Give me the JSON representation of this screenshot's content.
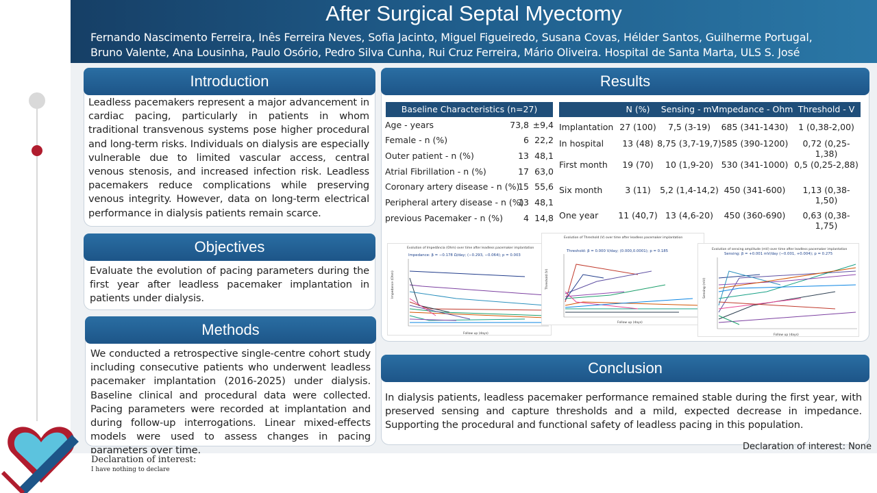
{
  "header": {
    "title": "After Surgical Septal Myectomy",
    "authors": "Fernando Nascimento Ferreira, Inês Ferreira Neves, Sofia Jacinto, Miguel Figueiredo, Susana Covas, Hélder Santos, Guilherme Portugal, Bruno Valente, Ana Lousinha, Paulo Osório, Pedro Silva Cunha, Rui Cruz Ferreira, Mário Oliveira. Hospital de Santa Marta, ULS S. José"
  },
  "introduction": {
    "heading": "Introduction",
    "text": "Leadless pacemakers represent a major advancement in cardiac pacing, particularly in patients in whom traditional transvenous systems pose higher procedural and long-term risks. Individuals on dialysis are especially vulnerable due to limited vascular access, central venous stenosis, and increased infection risk. Leadless pacemakers reduce complications while preserving venous integrity. However, data on long-term electrical performance in dialysis patients remain scarce."
  },
  "objectives": {
    "heading": "Objectives",
    "text": "Evaluate the evolution of pacing parameters during the first year after leadless pacemaker implantation in patients under dialysis."
  },
  "methods": {
    "heading": "Methods",
    "text": "We conducted a retrospective single-centre cohort study including consecutive patients who underwent leadless pacemaker implantation (2016-2025) under dialysis. Baseline clinical and procedural data were collected. Pacing parameters were recorded at implantation and during follow-up interrogations. Linear mixed-effects models were used to assess changes in pacing parameters over time."
  },
  "results": {
    "heading": "Results",
    "baseline": {
      "title": "Baseline Characteristics (n=27)",
      "rows": [
        {
          "label": "Age - years",
          "v1": "73,8",
          "v2": "±9,4"
        },
        {
          "label": "Female - n (%)",
          "v1": "6",
          "v2": "22,2"
        },
        {
          "label": "Outer patient - n (%)",
          "v1": "13",
          "v2": "48,1"
        },
        {
          "label": "Atrial Fibrillation - n (%)",
          "v1": "17",
          "v2": "63,0"
        },
        {
          "label": "Coronary artery disease - n (%)",
          "v1": "15",
          "v2": "55,6"
        },
        {
          "label": "Peripheral artery disease - n (%)",
          "v1": "13",
          "v2": "48,1"
        },
        {
          "label": "previous Pacemaker - n (%)",
          "v1": "4",
          "v2": "14,8"
        }
      ]
    },
    "table": {
      "columns": [
        "N (%)",
        "Sensing - mV",
        "Impedance - Ohm",
        "Threshold - V"
      ],
      "rows": [
        {
          "label": "Implantation",
          "cells": [
            "27 (100)",
            "7,5 (3-19)",
            "685 (341-1430)",
            "1 (0,38-2,00)"
          ]
        },
        {
          "label": "In hospital",
          "cells": [
            "13 (48)",
            "8,75 (3,7-19,7)",
            "585 (390-1200)",
            "0,72 (0,25-1,38)"
          ]
        },
        {
          "label": "First month",
          "cells": [
            "19 (70)",
            "10 (1,9-20)",
            "530 (341-1000)",
            "0,5 (0,25-2,88)"
          ]
        },
        {
          "label": "Six month",
          "cells": [
            "3 (11)",
            "5,2 (1,4-14,2)",
            "450 (341-600)",
            "1,13 (0,38-1,50)"
          ]
        },
        {
          "label": "One year",
          "cells": [
            "11 (40,7)",
            "13 (4,6-20)",
            "450 (360-690)",
            "0,63 (0,38-1,75)"
          ]
        }
      ]
    },
    "plots": [
      {
        "title": "Evolution of Impedância (Ohm) over time after leadless pacemaker implantation",
        "annotation": "Impedance: β = −0.178 Ω/day; (−0.293, −0.064); p = 0.003",
        "ylabel": "Impedance (Ohm)",
        "xlabel": "Follow up (days)"
      },
      {
        "title": "Evolution of Threshold (V) over time after leadless pacemaker implantation",
        "annotation": "Threshold: β = 0.000 V/day; (0.000,0.0001); p = 0.185",
        "ylabel": "Threshold (V)",
        "xlabel": "Follow up (days)"
      },
      {
        "title": "Evolution of sensing amplitude (mV) over time after leadless pacemaker implantation",
        "annotation": "Sensing: β = +0.001 mV/day (−0.001, +0.004); p = 0.275",
        "ylabel": "Sensing (mV)",
        "xlabel": "Follow up (days)"
      }
    ]
  },
  "conclusion": {
    "heading": "Conclusion",
    "text": "In dialysis patients, leadless pacemaker performance remained stable during the first year, with preserved sensing and capture thresholds and a mild, expected decrease in impedance. Supporting the procedural and functional safety of leadless pacing in this population."
  },
  "footer": {
    "declaration_right": "Declaration of interest: None",
    "declaration_left_title": "Declaration of interest:",
    "declaration_left_text": "I have nothing to declare"
  },
  "colors": {
    "header_dark": "#163f66",
    "section_blue": "#1d5588",
    "table_head": "#1f4e79",
    "accent_red": "#b01c2e"
  }
}
